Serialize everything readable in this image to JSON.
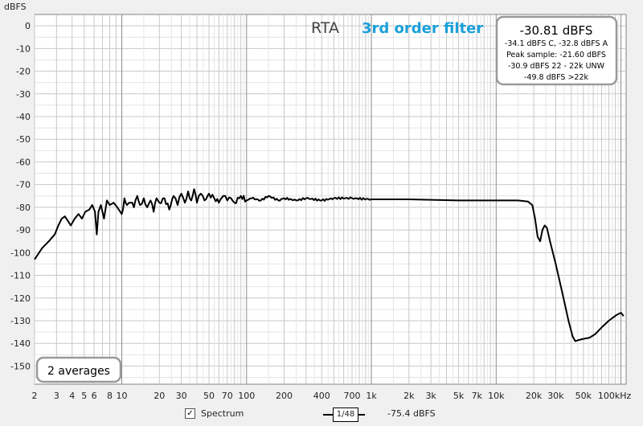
{
  "chart_data": {
    "type": "line",
    "title": "RTA",
    "subtitle": "3rd order filter",
    "ylabel": "dBFS",
    "xscale": "log",
    "xlim": [
      2,
      110000
    ],
    "ylim": [
      -158,
      5
    ],
    "grid": true,
    "y_ticks": [
      0,
      -10,
      -20,
      -30,
      -40,
      -50,
      -60,
      -70,
      -80,
      -90,
      -100,
      -110,
      -120,
      -130,
      -140,
      -150
    ],
    "x_ticks": [
      {
        "v": 2,
        "label": "2"
      },
      {
        "v": 3,
        "label": "3"
      },
      {
        "v": 4,
        "label": "4"
      },
      {
        "v": 5,
        "label": "5"
      },
      {
        "v": 6,
        "label": "6"
      },
      {
        "v": 8,
        "label": "8"
      },
      {
        "v": 10,
        "label": "10"
      },
      {
        "v": 20,
        "label": "20"
      },
      {
        "v": 30,
        "label": "30"
      },
      {
        "v": 50,
        "label": "50"
      },
      {
        "v": 70,
        "label": "70"
      },
      {
        "v": 100,
        "label": "100"
      },
      {
        "v": 200,
        "label": "200"
      },
      {
        "v": 400,
        "label": "400"
      },
      {
        "v": 700,
        "label": "700"
      },
      {
        "v": 1000,
        "label": "1k"
      },
      {
        "v": 2000,
        "label": "2k"
      },
      {
        "v": 3000,
        "label": "3k"
      },
      {
        "v": 5000,
        "label": "5k"
      },
      {
        "v": 7000,
        "label": "7k"
      },
      {
        "v": 10000,
        "label": "10k"
      },
      {
        "v": 20000,
        "label": "20k"
      },
      {
        "v": 30000,
        "label": "30k"
      },
      {
        "v": 50000,
        "label": "50k"
      },
      {
        "v": 100000,
        "label": "100kHz"
      }
    ],
    "series": [
      {
        "color": "#000000",
        "points": [
          [
            2,
            -103
          ],
          [
            2.3,
            -98
          ],
          [
            2.6,
            -95
          ],
          [
            2.9,
            -92
          ],
          [
            3.1,
            -88
          ],
          [
            3.3,
            -85
          ],
          [
            3.5,
            -84
          ],
          [
            3.7,
            -86
          ],
          [
            3.9,
            -88
          ],
          [
            4.2,
            -85
          ],
          [
            4.5,
            -83
          ],
          [
            4.8,
            -85
          ],
          [
            5.1,
            -82
          ],
          [
            5.5,
            -81
          ],
          [
            5.8,
            -79
          ],
          [
            6.1,
            -82
          ],
          [
            6.3,
            -92
          ],
          [
            6.5,
            -82
          ],
          [
            6.8,
            -79
          ],
          [
            7.2,
            -85
          ],
          [
            7.6,
            -77
          ],
          [
            8.0,
            -79
          ],
          [
            8.6,
            -78
          ],
          [
            9.2,
            -80
          ],
          [
            10,
            -83
          ],
          [
            10.5,
            -76
          ],
          [
            11,
            -79
          ],
          [
            11.8,
            -78
          ],
          [
            12.5,
            -80
          ],
          [
            13.3,
            -75
          ],
          [
            14,
            -79
          ],
          [
            15,
            -76
          ],
          [
            16,
            -80
          ],
          [
            17,
            -77
          ],
          [
            18,
            -82
          ],
          [
            19,
            -76
          ],
          [
            20,
            -78
          ],
          [
            22,
            -76
          ],
          [
            24,
            -81
          ],
          [
            26,
            -75
          ],
          [
            28,
            -79
          ],
          [
            30,
            -74
          ],
          [
            32,
            -78
          ],
          [
            34,
            -73
          ],
          [
            36,
            -77
          ],
          [
            38,
            -72
          ],
          [
            40,
            -78
          ],
          [
            43,
            -74
          ],
          [
            46,
            -77
          ],
          [
            50,
            -74
          ],
          [
            55,
            -76
          ],
          [
            60,
            -78
          ],
          [
            65,
            -75
          ],
          [
            70,
            -77
          ],
          [
            75,
            -76
          ],
          [
            80,
            -78
          ],
          [
            90,
            -75
          ],
          [
            100,
            -77
          ],
          [
            110,
            -76
          ],
          [
            130,
            -77
          ],
          [
            150,
            -75
          ],
          [
            180,
            -77
          ],
          [
            200,
            -76
          ],
          [
            250,
            -77
          ],
          [
            300,
            -76
          ],
          [
            400,
            -77
          ],
          [
            500,
            -76
          ],
          [
            700,
            -76
          ],
          [
            1000,
            -76.5
          ],
          [
            2000,
            -76.5
          ],
          [
            5000,
            -77
          ],
          [
            10000,
            -77
          ],
          [
            15000,
            -77
          ],
          [
            18000,
            -77.5
          ],
          [
            19500,
            -79
          ],
          [
            20500,
            -85
          ],
          [
            21500,
            -93
          ],
          [
            22500,
            -95
          ],
          [
            23500,
            -90
          ],
          [
            24500,
            -88
          ],
          [
            25500,
            -89
          ],
          [
            27000,
            -95
          ],
          [
            30000,
            -105
          ],
          [
            34000,
            -118
          ],
          [
            38000,
            -130
          ],
          [
            41000,
            -137
          ],
          [
            43000,
            -139
          ],
          [
            46000,
            -138.5
          ],
          [
            50000,
            -138
          ],
          [
            56000,
            -137.5
          ],
          [
            62000,
            -136
          ],
          [
            70000,
            -133
          ],
          [
            80000,
            -130
          ],
          [
            92000,
            -127.5
          ],
          [
            100000,
            -126.5
          ],
          [
            105000,
            -128
          ]
        ]
      }
    ],
    "readout": {
      "main": "-30.81 dBFS",
      "lines": [
        "-34.1 dBFS C, -32.8 dBFS A",
        "Peak sample: -21.60 dBFS",
        "-30.9 dBFS 22 - 22k UNW",
        "-49.8 dBFS >22k"
      ]
    },
    "averages": "2 averages"
  },
  "footer": {
    "spectrum_label": "Spectrum",
    "spectrum_checked": true,
    "smoothing_label": "1/48",
    "value_label": "-75.4 dBFS"
  }
}
